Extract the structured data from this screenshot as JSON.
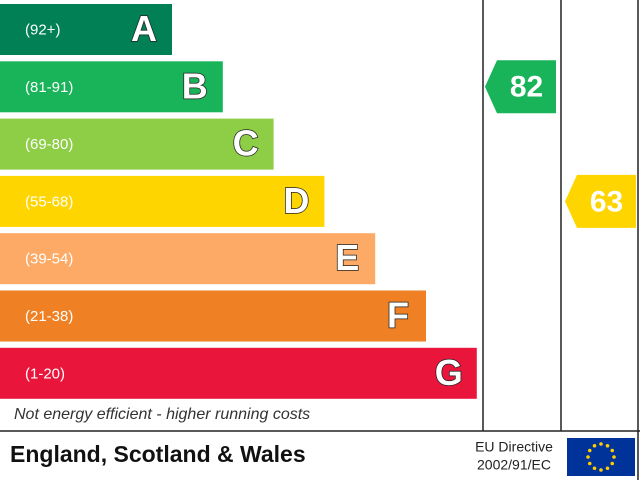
{
  "bands": [
    {
      "range": "(92+)",
      "letter": "A",
      "color": "#008054"
    },
    {
      "range": "(81-91)",
      "letter": "B",
      "color": "#19b459"
    },
    {
      "range": "(69-80)",
      "letter": "C",
      "color": "#8dce46"
    },
    {
      "range": "(55-68)",
      "letter": "D",
      "color": "#ffd500"
    },
    {
      "range": "(39-54)",
      "letter": "E",
      "color": "#fcaa65"
    },
    {
      "range": "(21-38)",
      "letter": "F",
      "color": "#ef8023"
    },
    {
      "range": "(1-20)",
      "letter": "G",
      "color": "#e9153b"
    }
  ],
  "current": {
    "value": 82
  },
  "potential": {
    "value": 63
  },
  "note": "Not energy efficient - higher running costs",
  "footer": {
    "region": "England, Scotland & Wales",
    "directive_line1": "EU Directive",
    "directive_line2": "2002/91/EC"
  }
}
